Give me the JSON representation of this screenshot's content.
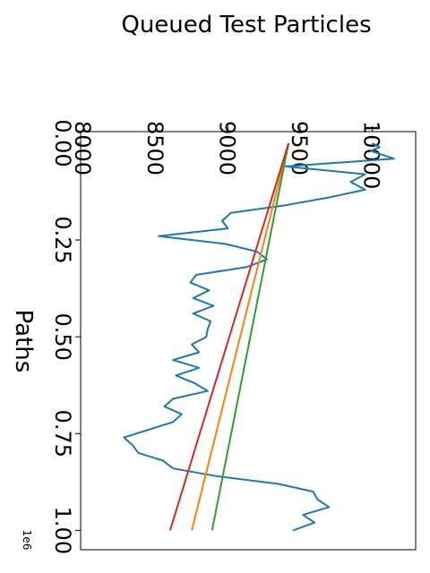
{
  "chart_data": {
    "type": "line",
    "title": "Queued Test Particles",
    "xlabel": "Paths",
    "ylabel": "",
    "x_offset_label": "1e6",
    "x_ticks": [
      0,
      250000,
      500000,
      750000,
      1000000
    ],
    "x_tick_labels": [
      "0.00",
      "0.25",
      "0.50",
      "0.75",
      "1.00"
    ],
    "y_ticks": [
      8000,
      8500,
      9000,
      9500,
      10000
    ],
    "y_tick_labels": [
      "8000",
      "8500",
      "9000",
      "9500",
      "10000"
    ],
    "xlim": [
      -30000,
      1050000
    ],
    "ylim": [
      7980,
      10300
    ],
    "orientation": "rotated-90-clockwise",
    "grid": false,
    "series": [
      {
        "color": "#1f77b4",
        "x": [
          0,
          10000,
          20000,
          40000,
          60000,
          80000,
          100000,
          120000,
          140000,
          160000,
          180000,
          200000,
          220000,
          240000,
          260000,
          280000,
          300000,
          320000,
          340000,
          360000,
          380000,
          400000,
          420000,
          440000,
          460000,
          480000,
          500000,
          520000,
          540000,
          560000,
          580000,
          600000,
          620000,
          640000,
          660000,
          680000,
          700000,
          720000,
          740000,
          760000,
          780000,
          800000,
          820000,
          840000,
          860000,
          880000,
          900000,
          920000,
          940000,
          960000,
          980000,
          1000000
        ],
        "y": [
          10000,
          10050,
          9990,
          10150,
          9400,
          9950,
          9850,
          9950,
          9700,
          9400,
          9020,
          8960,
          9000,
          8520,
          8980,
          9200,
          9270,
          9130,
          8780,
          8740,
          8870,
          8760,
          8900,
          8760,
          8880,
          8860,
          8850,
          8750,
          8800,
          8620,
          8800,
          8640,
          8770,
          8860,
          8620,
          8560,
          8680,
          8620,
          8450,
          8280,
          8340,
          8380,
          8550,
          8620,
          8920,
          9350,
          9590,
          9620,
          9700,
          9520,
          9600,
          9450
        ]
      },
      {
        "color": "#ff7f0e",
        "x": [
          0,
          1000000
        ],
        "y": [
          9420,
          8750
        ]
      },
      {
        "color": "#2ca02c",
        "x": [
          0,
          1000000
        ],
        "y": [
          9420,
          8890
        ]
      },
      {
        "color": "#d62728",
        "x": [
          0,
          1000000
        ],
        "y": [
          9420,
          8600
        ]
      }
    ]
  }
}
